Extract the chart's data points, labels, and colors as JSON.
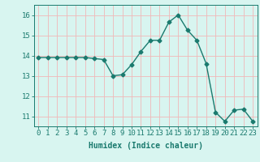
{
  "x": [
    0,
    1,
    2,
    3,
    4,
    5,
    6,
    7,
    8,
    9,
    10,
    11,
    12,
    13,
    14,
    15,
    16,
    17,
    18,
    19,
    20,
    21,
    22,
    23
  ],
  "y": [
    13.9,
    13.9,
    13.9,
    13.9,
    13.9,
    13.9,
    13.85,
    13.8,
    13.0,
    13.05,
    13.55,
    14.2,
    14.75,
    14.75,
    15.65,
    16.0,
    15.25,
    14.75,
    13.6,
    11.2,
    10.75,
    11.3,
    11.35,
    10.75
  ],
  "xlabel": "Humidex (Indice chaleur)",
  "ylim": [
    10.5,
    16.5
  ],
  "xlim": [
    -0.5,
    23.5
  ],
  "yticks": [
    11,
    12,
    13,
    14,
    15,
    16
  ],
  "xticks": [
    0,
    1,
    2,
    3,
    4,
    5,
    6,
    7,
    8,
    9,
    10,
    11,
    12,
    13,
    14,
    15,
    16,
    17,
    18,
    19,
    20,
    21,
    22,
    23
  ],
  "xtick_labels": [
    "0",
    "1",
    "2",
    "3",
    "4",
    "5",
    "6",
    "7",
    "8",
    "9",
    "10",
    "11",
    "12",
    "13",
    "14",
    "15",
    "16",
    "17",
    "18",
    "19",
    "20",
    "21",
    "22",
    "23"
  ],
  "line_color": "#1a7a6e",
  "marker": "D",
  "marker_size": 2.5,
  "line_width": 1.0,
  "bg_color": "#d8f5f0",
  "grid_color": "#f0b8b8",
  "tick_color": "#1a7a6e",
  "label_color": "#1a7a6e",
  "font_size_xlabel": 7,
  "font_size_ticks": 6.5
}
